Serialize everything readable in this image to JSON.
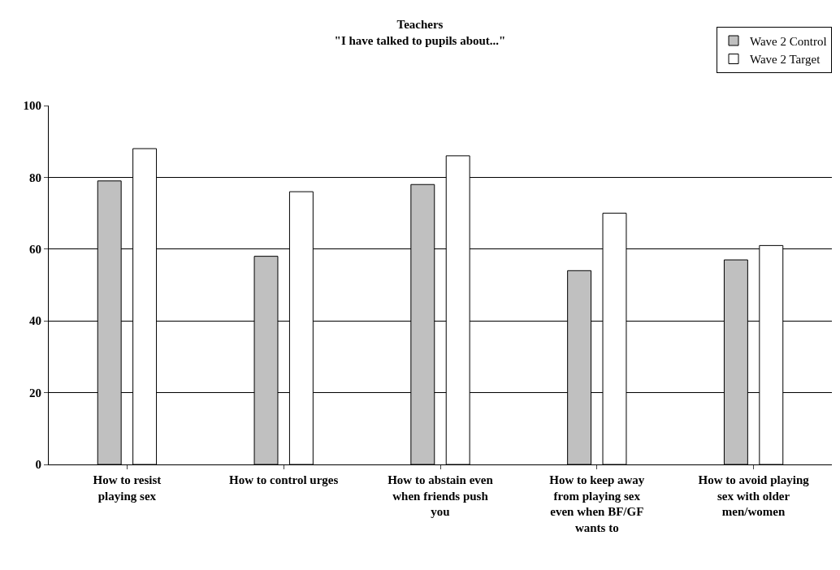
{
  "chart_data": {
    "type": "bar",
    "title": "Teachers",
    "subtitle": "\"I have talked to pupils about...\"",
    "categories": [
      "How to resist playing sex",
      "How to control urges",
      "How to abstain even when friends push you",
      "How to keep away from playing sex even when BF/GF wants to",
      "How to avoid playing sex with older men/women"
    ],
    "series": [
      {
        "name": "Wave 2 Control",
        "color": "#c0c0c0",
        "values": [
          79,
          58,
          78,
          54,
          57
        ]
      },
      {
        "name": "Wave 2 Target",
        "color": "#ffffff",
        "values": [
          88,
          76,
          86,
          70,
          61
        ]
      }
    ],
    "ylim": [
      0,
      100
    ],
    "yticks": [
      0,
      20,
      40,
      60,
      80,
      100
    ],
    "grid": "y",
    "legend": "top right"
  }
}
